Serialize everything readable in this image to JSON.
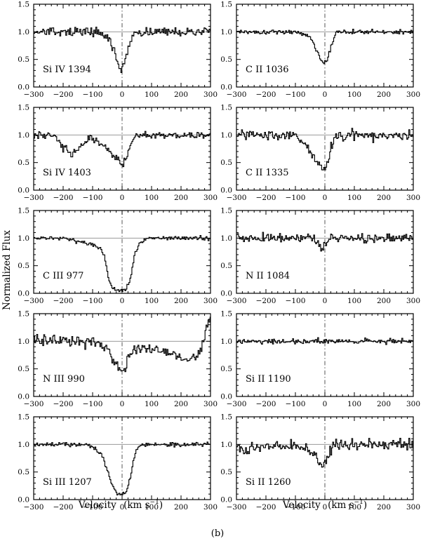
{
  "figure": {
    "caption": "(b)",
    "ylabel": "Normalized Flux",
    "xlabel": "Velocity",
    "xlabel_unit": "(km s",
    "xlabel_exp": "−1",
    "xlabel_close": ")"
  },
  "chart_data": [
    {
      "type": "line",
      "label": "Si IV 1394",
      "xlim": [
        -300,
        300
      ],
      "ylim": [
        0,
        1.5
      ],
      "xticks": [
        -300,
        -200,
        -100,
        0,
        100,
        200,
        300
      ],
      "yticks": [
        0.0,
        0.5,
        1.0,
        1.5
      ],
      "continuum": 1.0,
      "noise": 0.07,
      "profile": [
        {
          "v": -75,
          "y": 1.0
        },
        {
          "v": -40,
          "y": 0.84
        },
        {
          "v": -25,
          "y": 0.62
        },
        {
          "v": -12,
          "y": 0.4
        },
        {
          "v": -5,
          "y": 0.28
        },
        {
          "v": 5,
          "y": 0.42
        },
        {
          "v": 15,
          "y": 0.55
        },
        {
          "v": 25,
          "y": 0.78
        },
        {
          "v": 45,
          "y": 1.0
        }
      ]
    },
    {
      "type": "line",
      "label": "C II 1036",
      "xlim": [
        -300,
        300
      ],
      "ylim": [
        0,
        1.5
      ],
      "xticks": [
        -300,
        -200,
        -100,
        0,
        100,
        200,
        300
      ],
      "yticks": [
        0.0,
        0.5,
        1.0,
        1.5
      ],
      "continuum": 1.0,
      "noise": 0.04,
      "profile": [
        {
          "v": -110,
          "y": 1.0
        },
        {
          "v": -60,
          "y": 0.95
        },
        {
          "v": -40,
          "y": 0.82
        },
        {
          "v": -25,
          "y": 0.62
        },
        {
          "v": -10,
          "y": 0.47
        },
        {
          "v": 0,
          "y": 0.43
        },
        {
          "v": 10,
          "y": 0.5
        },
        {
          "v": 20,
          "y": 0.72
        },
        {
          "v": 40,
          "y": 1.0
        }
      ]
    },
    {
      "type": "line",
      "label": "Si IV 1403",
      "xlim": [
        -300,
        300
      ],
      "ylim": [
        0,
        1.5
      ],
      "xticks": [
        -300,
        -200,
        -100,
        0,
        100,
        200,
        300
      ],
      "yticks": [
        0.0,
        0.5,
        1.0,
        1.5
      ],
      "continuum": 1.0,
      "noise": 0.06,
      "profile": [
        {
          "v": -230,
          "y": 1.0
        },
        {
          "v": -200,
          "y": 0.78
        },
        {
          "v": -170,
          "y": 0.62
        },
        {
          "v": -140,
          "y": 0.8
        },
        {
          "v": -110,
          "y": 0.95
        },
        {
          "v": -70,
          "y": 0.85
        },
        {
          "v": -40,
          "y": 0.7
        },
        {
          "v": -15,
          "y": 0.55
        },
        {
          "v": 0,
          "y": 0.45
        },
        {
          "v": 15,
          "y": 0.6
        },
        {
          "v": 35,
          "y": 0.9
        },
        {
          "v": 55,
          "y": 1.0
        }
      ]
    },
    {
      "type": "line",
      "label": "C II 1335",
      "xlim": [
        -300,
        300
      ],
      "ylim": [
        0,
        1.5
      ],
      "xticks": [
        -300,
        -200,
        -100,
        0,
        100,
        200,
        300
      ],
      "yticks": [
        0.0,
        0.5,
        1.0,
        1.5
      ],
      "continuum": 1.0,
      "noise": 0.08,
      "profile": [
        {
          "v": -110,
          "y": 1.0
        },
        {
          "v": -80,
          "y": 0.9
        },
        {
          "v": -60,
          "y": 0.78
        },
        {
          "v": -40,
          "y": 0.62
        },
        {
          "v": -20,
          "y": 0.46
        },
        {
          "v": -8,
          "y": 0.36
        },
        {
          "v": 5,
          "y": 0.45
        },
        {
          "v": 20,
          "y": 0.75
        },
        {
          "v": 40,
          "y": 1.0
        }
      ]
    },
    {
      "type": "line",
      "label": "C III 977",
      "xlim": [
        -300,
        300
      ],
      "ylim": [
        0,
        1.5
      ],
      "xticks": [
        -300,
        -200,
        -100,
        0,
        100,
        200,
        300
      ],
      "yticks": [
        0.0,
        0.5,
        1.0,
        1.5
      ],
      "continuum": 1.0,
      "noise": 0.035,
      "profile": [
        {
          "v": -180,
          "y": 0.98
        },
        {
          "v": -110,
          "y": 0.9
        },
        {
          "v": -70,
          "y": 0.82
        },
        {
          "v": -55,
          "y": 0.55
        },
        {
          "v": -45,
          "y": 0.25
        },
        {
          "v": -30,
          "y": 0.1
        },
        {
          "v": -10,
          "y": 0.05
        },
        {
          "v": 10,
          "y": 0.06
        },
        {
          "v": 25,
          "y": 0.18
        },
        {
          "v": 35,
          "y": 0.45
        },
        {
          "v": 45,
          "y": 0.75
        },
        {
          "v": 60,
          "y": 0.92
        },
        {
          "v": 90,
          "y": 1.0
        }
      ]
    },
    {
      "type": "line",
      "label": "N II 1084",
      "xlim": [
        -300,
        300
      ],
      "ylim": [
        0,
        1.5
      ],
      "xticks": [
        -300,
        -200,
        -100,
        0,
        100,
        200,
        300
      ],
      "yticks": [
        0.0,
        0.5,
        1.0,
        1.5
      ],
      "continuum": 1.0,
      "noise": 0.07,
      "profile": [
        {
          "v": -40,
          "y": 1.0
        },
        {
          "v": -20,
          "y": 0.9
        },
        {
          "v": -10,
          "y": 0.82
        },
        {
          "v": 0,
          "y": 0.88
        },
        {
          "v": 15,
          "y": 1.0
        }
      ]
    },
    {
      "type": "line",
      "label": "N III 990",
      "xlim": [
        -300,
        300
      ],
      "ylim": [
        0,
        1.5
      ],
      "xticks": [
        -300,
        -200,
        -100,
        0,
        100,
        200,
        300
      ],
      "yticks": [
        0.0,
        0.5,
        1.0,
        1.5
      ],
      "continuum": 1.0,
      "noise": 0.1,
      "profile": [
        {
          "v": -300,
          "y": 1.02
        },
        {
          "v": -110,
          "y": 1.0
        },
        {
          "v": -60,
          "y": 0.9
        },
        {
          "v": -35,
          "y": 0.72
        },
        {
          "v": -15,
          "y": 0.55
        },
        {
          "v": 0,
          "y": 0.42
        },
        {
          "v": 15,
          "y": 0.6
        },
        {
          "v": 40,
          "y": 0.85
        },
        {
          "v": 60,
          "y": 0.85
        },
        {
          "v": 150,
          "y": 0.82
        },
        {
          "v": 200,
          "y": 0.7
        },
        {
          "v": 240,
          "y": 0.72
        },
        {
          "v": 265,
          "y": 0.78
        },
        {
          "v": 280,
          "y": 1.05
        },
        {
          "v": 290,
          "y": 1.3
        },
        {
          "v": 300,
          "y": 1.45
        }
      ]
    },
    {
      "type": "line",
      "label": "Si II 1190",
      "xlim": [
        -300,
        300
      ],
      "ylim": [
        0,
        1.5
      ],
      "xticks": [
        -300,
        -200,
        -100,
        0,
        100,
        200,
        300
      ],
      "yticks": [
        0.0,
        0.5,
        1.0,
        1.5
      ],
      "continuum": 1.0,
      "noise": 0.045,
      "profile": [
        {
          "v": -300,
          "y": 1.0
        },
        {
          "v": 300,
          "y": 1.0
        }
      ]
    },
    {
      "type": "line",
      "label": "Si III 1207",
      "xlim": [
        -300,
        300
      ],
      "ylim": [
        0,
        1.5
      ],
      "xticks": [
        -300,
        -200,
        -100,
        0,
        100,
        200,
        300
      ],
      "yticks": [
        0.0,
        0.5,
        1.0,
        1.5
      ],
      "continuum": 1.0,
      "noise": 0.035,
      "profile": [
        {
          "v": -120,
          "y": 1.0
        },
        {
          "v": -95,
          "y": 0.95
        },
        {
          "v": -75,
          "y": 0.85
        },
        {
          "v": -60,
          "y": 0.7
        },
        {
          "v": -45,
          "y": 0.45
        },
        {
          "v": -30,
          "y": 0.22
        },
        {
          "v": -15,
          "y": 0.12
        },
        {
          "v": 0,
          "y": 0.1
        },
        {
          "v": 15,
          "y": 0.15
        },
        {
          "v": 28,
          "y": 0.4
        },
        {
          "v": 40,
          "y": 0.75
        },
        {
          "v": 55,
          "y": 0.95
        },
        {
          "v": 70,
          "y": 1.0
        }
      ]
    },
    {
      "type": "line",
      "label": "Si II 1260",
      "xlim": [
        -300,
        300
      ],
      "ylim": [
        0,
        1.5
      ],
      "xticks": [
        -300,
        -200,
        -100,
        0,
        100,
        200,
        300
      ],
      "yticks": [
        0.0,
        0.5,
        1.0,
        1.5
      ],
      "continuum": 1.0,
      "noise": 0.08,
      "profile": [
        {
          "v": -300,
          "y": 0.98
        },
        {
          "v": -270,
          "y": 0.85
        },
        {
          "v": -240,
          "y": 0.95
        },
        {
          "v": -100,
          "y": 1.0
        },
        {
          "v": -60,
          "y": 0.9
        },
        {
          "v": -30,
          "y": 0.75
        },
        {
          "v": -10,
          "y": 0.62
        },
        {
          "v": 5,
          "y": 0.7
        },
        {
          "v": 20,
          "y": 0.9
        },
        {
          "v": 40,
          "y": 1.05
        }
      ]
    }
  ]
}
